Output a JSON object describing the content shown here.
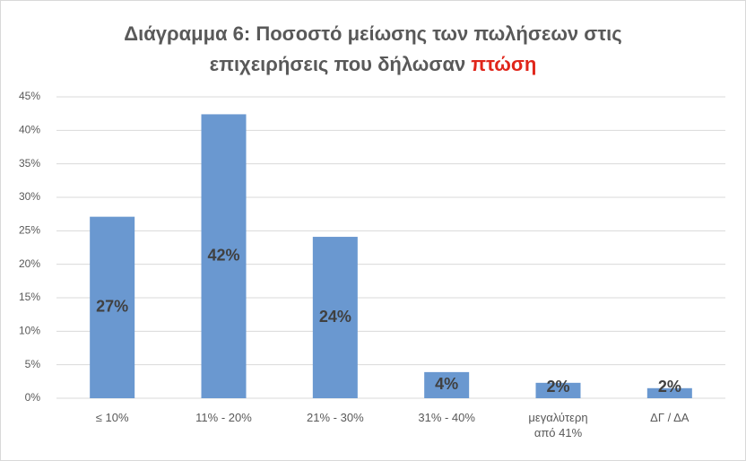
{
  "chart_data": {
    "type": "bar",
    "title_line1": "Διάγραμμα 6: Ποσοστό μείωσης των πωλήσεων στις",
    "title_line2": "επιχειρήσεις που δήλωσαν",
    "title_highlight": "πτώση",
    "title_highlight_color": "#e0261b",
    "categories": [
      "≤ 10%",
      "11% - 20%",
      "21% - 30%",
      "31% - 40%",
      "μεγαλύτερη από 41%",
      "ΔΓ / ΔΑ"
    ],
    "values": [
      27.1,
      42.4,
      24.1,
      3.9,
      2.3,
      1.5
    ],
    "value_labels": [
      "27%",
      "42%",
      "24%",
      "4%",
      "2%",
      "2%"
    ],
    "color": "#6a98d0",
    "ylim": [
      0,
      45
    ],
    "yticks": [
      {
        "value": 0,
        "label": "0%"
      },
      {
        "value": 5,
        "label": "5%"
      },
      {
        "value": 10,
        "label": "10%"
      },
      {
        "value": 15,
        "label": "15%"
      },
      {
        "value": 20,
        "label": "20%"
      },
      {
        "value": 25,
        "label": "25%"
      },
      {
        "value": 30,
        "label": "30%"
      },
      {
        "value": 35,
        "label": "35%"
      },
      {
        "value": 40,
        "label": "40%"
      },
      {
        "value": 45,
        "label": "45%"
      }
    ],
    "grid": true
  }
}
